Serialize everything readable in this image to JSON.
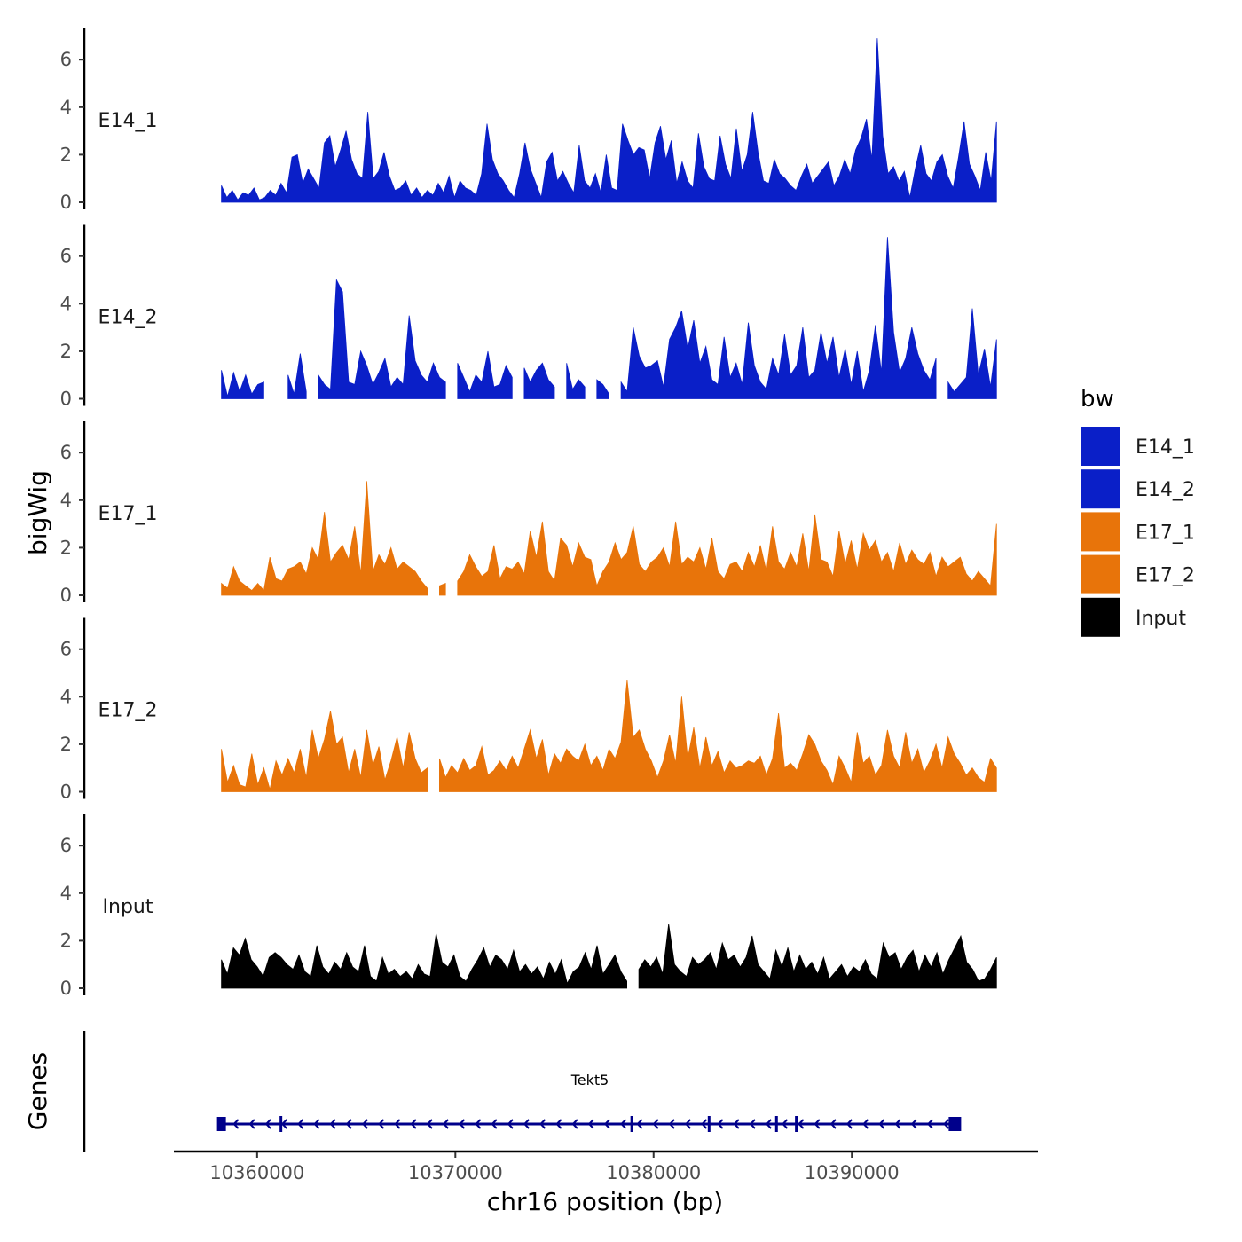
{
  "chart_data": {
    "type": "area",
    "title": "",
    "xlabel": "chr16 position (bp)",
    "ylabel": "bigWig",
    "genes_label": "Genes",
    "xlim": [
      10355800,
      10399300
    ],
    "x_ticks": [
      10360000,
      10370000,
      10380000,
      10390000
    ],
    "x_tick_labels": [
      "10360000",
      "10370000",
      "10380000",
      "10390000"
    ],
    "ylim": [
      0,
      7
    ],
    "y_ticks": [
      0,
      2,
      4,
      6
    ],
    "y_tick_labels": [
      "0",
      "2",
      "4",
      "6"
    ],
    "legend": {
      "title": "bw",
      "position": "right",
      "entries": [
        {
          "label": "E14_1",
          "color": "#0a1fc8"
        },
        {
          "label": "E14_2",
          "color": "#0a1fc8"
        },
        {
          "label": "E17_1",
          "color": "#e8740a"
        },
        {
          "label": "E17_2",
          "color": "#e8740a"
        },
        {
          "label": "Input",
          "color": "#000000"
        }
      ]
    },
    "series": [
      {
        "name": "E14_1",
        "color": "#0a1fc8",
        "x_start": 10358200,
        "x_end": 10397300,
        "values": [
          0.7,
          0.2,
          0.5,
          0.1,
          0.4,
          0.3,
          0.6,
          0.1,
          0.2,
          0.5,
          0.3,
          0.8,
          0.4,
          1.9,
          2.0,
          0.8,
          1.4,
          1.0,
          0.6,
          2.5,
          2.8,
          1.5,
          2.2,
          3.0,
          1.8,
          1.2,
          1.0,
          3.8,
          1.0,
          1.3,
          2.1,
          1.1,
          0.5,
          0.6,
          0.9,
          0.3,
          0.6,
          0.2,
          0.5,
          0.3,
          0.8,
          0.4,
          1.1,
          0.2,
          0.9,
          0.6,
          0.5,
          0.3,
          1.2,
          3.3,
          1.8,
          1.2,
          0.9,
          0.5,
          0.2,
          1.2,
          2.5,
          1.4,
          0.8,
          0.2,
          1.7,
          2.1,
          0.9,
          1.3,
          0.8,
          0.4,
          2.4,
          0.9,
          0.6,
          1.2,
          0.4,
          2.0,
          0.6,
          0.5,
          3.3,
          2.6,
          2.0,
          2.3,
          2.2,
          1.0,
          2.5,
          3.2,
          1.8,
          2.6,
          0.8,
          1.7,
          0.9,
          0.6,
          2.9,
          1.5,
          1.0,
          0.9,
          2.8,
          1.6,
          1.0,
          3.1,
          1.3,
          2.0,
          3.8,
          2.1,
          0.9,
          0.8,
          1.8,
          1.2,
          1.0,
          0.7,
          0.5,
          1.1,
          1.6,
          0.8,
          1.1,
          1.4,
          1.7,
          0.7,
          1.1,
          1.8,
          1.2,
          2.2,
          2.7,
          3.5,
          1.8,
          6.9,
          2.8,
          1.2,
          1.5,
          0.9,
          1.3,
          0.2,
          1.4,
          2.4,
          1.2,
          0.9,
          1.7,
          2.0,
          1.1,
          0.6,
          1.9,
          3.4,
          1.6,
          1.1,
          0.5,
          2.1,
          0.9,
          3.4
        ]
      },
      {
        "name": "E14_2",
        "color": "#0a1fc8",
        "x_start": 10358200,
        "x_end": 10397300,
        "values": [
          1.2,
          0.1,
          1.1,
          0.3,
          1.0,
          0.2,
          0.6,
          0.7,
          null,
          null,
          null,
          1.0,
          0.2,
          1.9,
          0.3,
          null,
          1.0,
          0.6,
          0.4,
          5.0,
          4.5,
          0.7,
          0.6,
          2.0,
          1.4,
          0.6,
          1.1,
          1.7,
          0.5,
          0.9,
          0.6,
          3.5,
          1.6,
          1.0,
          0.7,
          1.5,
          0.9,
          0.7,
          null,
          1.5,
          0.9,
          0.3,
          1.0,
          0.7,
          2.0,
          0.5,
          0.6,
          1.4,
          0.9,
          null,
          1.3,
          0.7,
          1.2,
          1.5,
          0.8,
          0.5,
          null,
          1.5,
          0.4,
          0.8,
          0.5,
          null,
          0.8,
          0.6,
          0.2,
          null,
          0.7,
          0.3,
          3.0,
          1.8,
          1.3,
          1.4,
          1.6,
          0.5,
          2.5,
          3.0,
          3.7,
          2.1,
          3.3,
          1.5,
          2.2,
          0.8,
          0.6,
          2.6,
          0.9,
          1.5,
          0.6,
          3.2,
          1.4,
          0.7,
          0.4,
          1.7,
          1.0,
          2.7,
          1.0,
          1.4,
          3.0,
          0.9,
          1.2,
          2.8,
          1.5,
          2.6,
          0.9,
          2.1,
          0.6,
          2.0,
          0.3,
          1.2,
          3.1,
          1.1,
          6.8,
          2.8,
          1.1,
          1.7,
          3.0,
          1.9,
          1.2,
          0.8,
          1.7,
          null,
          0.7,
          0.3,
          0.6,
          0.9,
          3.8,
          1.0,
          2.1,
          0.5,
          2.5
        ]
      },
      {
        "name": "E17_1",
        "color": "#e8740a",
        "x_start": 10358200,
        "x_end": 10397300,
        "values": [
          0.5,
          0.3,
          1.2,
          0.6,
          0.4,
          0.2,
          0.5,
          0.2,
          1.6,
          0.7,
          0.6,
          1.1,
          1.2,
          1.4,
          0.9,
          2.0,
          1.5,
          3.5,
          1.4,
          1.8,
          2.1,
          1.5,
          2.9,
          0.9,
          4.8,
          1.0,
          1.7,
          1.3,
          2.0,
          1.1,
          1.4,
          1.2,
          1.0,
          0.6,
          0.3,
          null,
          0.4,
          0.5,
          null,
          0.6,
          1.0,
          1.7,
          1.2,
          0.8,
          1.0,
          2.1,
          0.7,
          1.2,
          1.1,
          1.4,
          0.9,
          2.7,
          1.6,
          3.1,
          1.0,
          0.6,
          2.4,
          2.1,
          1.2,
          2.2,
          1.6,
          1.5,
          0.4,
          1.0,
          1.4,
          2.2,
          1.5,
          1.8,
          2.9,
          1.3,
          1.0,
          1.4,
          1.6,
          2.0,
          1.2,
          3.1,
          1.3,
          1.6,
          1.4,
          2.0,
          1.1,
          2.4,
          1.0,
          0.7,
          1.3,
          1.4,
          1.0,
          1.8,
          1.2,
          2.1,
          1.0,
          2.9,
          1.4,
          1.1,
          1.8,
          1.2,
          2.6,
          1.0,
          3.4,
          1.5,
          1.4,
          0.8,
          2.7,
          1.3,
          2.3,
          1.1,
          2.6,
          1.9,
          2.3,
          1.4,
          1.8,
          1.0,
          2.2,
          1.3,
          1.9,
          1.5,
          1.3,
          1.8,
          0.8,
          1.6,
          1.2,
          1.4,
          1.6,
          0.9,
          0.6,
          1.0,
          0.7,
          0.4,
          3.0
        ]
      },
      {
        "name": "E17_2",
        "color": "#e8740a",
        "x_start": 10358200,
        "x_end": 10397300,
        "values": [
          1.8,
          0.4,
          1.1,
          0.3,
          0.2,
          1.6,
          0.3,
          1.0,
          0.1,
          1.3,
          0.7,
          1.4,
          0.8,
          1.8,
          0.6,
          2.6,
          1.4,
          2.2,
          3.4,
          2.0,
          2.3,
          0.8,
          1.8,
          0.6,
          2.6,
          1.1,
          1.9,
          0.5,
          1.3,
          2.3,
          1.0,
          2.5,
          1.4,
          0.8,
          1.0,
          null,
          1.4,
          0.6,
          1.1,
          0.8,
          1.4,
          0.9,
          1.1,
          1.9,
          0.7,
          0.9,
          1.3,
          0.9,
          1.5,
          1.0,
          1.8,
          2.6,
          1.4,
          2.2,
          0.7,
          1.6,
          1.2,
          1.8,
          1.5,
          1.3,
          2.0,
          1.1,
          1.5,
          0.9,
          1.8,
          1.4,
          2.1,
          4.7,
          2.3,
          2.6,
          1.8,
          1.3,
          0.6,
          1.3,
          2.4,
          1.2,
          4.0,
          1.4,
          2.7,
          1.0,
          2.3,
          1.1,
          1.7,
          0.8,
          1.3,
          1.0,
          1.1,
          1.3,
          1.2,
          1.5,
          0.7,
          1.4,
          3.3,
          1.0,
          1.2,
          0.9,
          1.6,
          2.4,
          2.0,
          1.3,
          0.9,
          0.3,
          1.5,
          1.0,
          0.4,
          2.5,
          1.2,
          1.5,
          0.7,
          1.1,
          2.6,
          1.5,
          1.0,
          2.5,
          1.2,
          1.8,
          0.8,
          1.3,
          2.0,
          1.0,
          2.3,
          1.6,
          1.2,
          0.7,
          1.0,
          0.6,
          0.4,
          1.4,
          1.0
        ]
      },
      {
        "name": "Input",
        "color": "#000000",
        "x_start": 10358200,
        "x_end": 10397300,
        "values": [
          1.2,
          0.6,
          1.7,
          1.4,
          2.1,
          1.2,
          0.9,
          0.5,
          1.3,
          1.5,
          1.3,
          1.0,
          0.8,
          1.4,
          0.7,
          0.5,
          1.8,
          0.9,
          0.6,
          1.1,
          0.8,
          1.5,
          0.9,
          0.7,
          1.8,
          0.5,
          0.3,
          1.3,
          0.6,
          0.8,
          0.5,
          0.7,
          0.4,
          1.0,
          0.6,
          0.5,
          2.3,
          1.1,
          0.9,
          1.4,
          0.5,
          0.3,
          0.8,
          1.2,
          1.7,
          0.9,
          1.4,
          1.2,
          0.8,
          1.6,
          0.7,
          1.0,
          0.6,
          0.9,
          0.4,
          1.1,
          0.6,
          1.2,
          0.2,
          0.7,
          0.9,
          1.5,
          0.8,
          1.8,
          0.6,
          1.0,
          1.4,
          0.7,
          0.3,
          null,
          0.8,
          1.2,
          0.9,
          1.3,
          0.6,
          2.7,
          1.0,
          0.7,
          0.5,
          1.3,
          1.0,
          1.2,
          1.5,
          0.8,
          1.9,
          1.2,
          1.4,
          0.9,
          1.3,
          2.2,
          1.0,
          0.7,
          0.4,
          1.6,
          0.9,
          1.7,
          0.7,
          1.4,
          0.8,
          1.1,
          0.6,
          1.3,
          0.4,
          0.7,
          1.0,
          0.5,
          0.9,
          0.7,
          1.2,
          0.6,
          0.4,
          1.9,
          1.3,
          1.5,
          0.8,
          1.3,
          1.6,
          0.7,
          1.4,
          0.9,
          1.5,
          0.6,
          1.2,
          1.7,
          2.2,
          1.1,
          0.8,
          0.3,
          0.4,
          0.8,
          1.3
        ]
      }
    ],
    "genes": [
      {
        "name": "Tekt5",
        "strand": "-",
        "start": 10358200,
        "end": 10395200,
        "exons": [
          10358200,
          10361200,
          10378900,
          10382800,
          10386200,
          10387200,
          10395200
        ]
      }
    ]
  }
}
